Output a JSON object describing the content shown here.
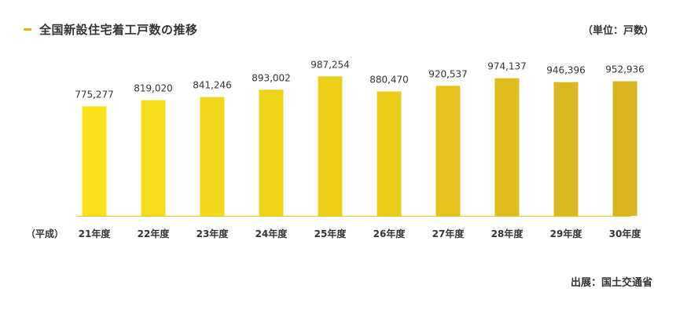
{
  "header": {
    "title": "全国新設住宅着工戸数の推移",
    "unit": "（単位：戸数）"
  },
  "footer": {
    "source": "出展：国土交通省"
  },
  "chart_data": {
    "type": "bar",
    "title": "全国新設住宅着工戸数の推移",
    "xlabel": "",
    "ylabel": "",
    "era_label": "（平成）",
    "categories": [
      "21年度",
      "22年度",
      "23年度",
      "24年度",
      "25年度",
      "26年度",
      "27年度",
      "28年度",
      "29年度",
      "30年度"
    ],
    "values": [
      775277,
      819020,
      841246,
      893002,
      987254,
      880470,
      920537,
      974137,
      946396,
      952936
    ],
    "value_labels": [
      "775,277",
      "819,020",
      "841,246",
      "893,002",
      "987,254",
      "880,470",
      "920,537",
      "974,137",
      "946,396",
      "952,936"
    ],
    "ylim": [
      0,
      1000000
    ],
    "grid": false,
    "bar_colors": [
      "#f7e01e",
      "#f5dc1d",
      "#f2d81d",
      "#efd41c",
      "#ecd01c",
      "#e9cc1c",
      "#e3c31d",
      "#dfbd1e",
      "#dbb820",
      "#d8b421"
    ]
  }
}
